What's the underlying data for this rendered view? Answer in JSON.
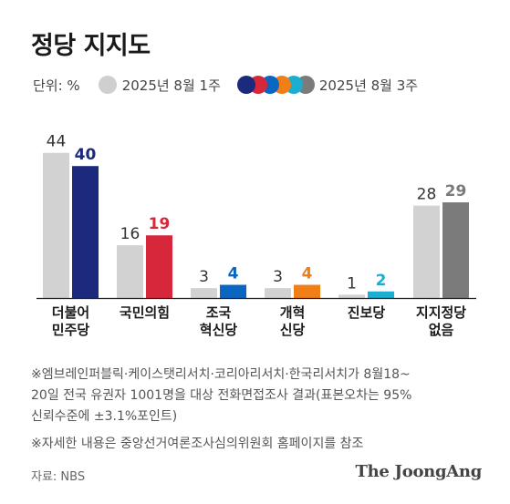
{
  "title": "정당 지지도",
  "legend": {
    "unit": "단위: %",
    "prev_label": "2025년 8월 1주",
    "curr_label": "2025년 8월 3주"
  },
  "chart_data": {
    "type": "bar",
    "categories": [
      "더불어\n민주당",
      "국민의힘",
      "조국\n혁신당",
      "개혁\n신당",
      "진보당",
      "지지정당\n없음"
    ],
    "series": [
      {
        "name": "2025년 8월 1주",
        "values": [
          44,
          16,
          3,
          3,
          1,
          28
        ],
        "color": "#d2d2d2"
      },
      {
        "name": "2025년 8월 3주",
        "values": [
          40,
          19,
          4,
          4,
          2,
          29
        ],
        "colors": [
          "#1b2a7c",
          "#d7283b",
          "#0b66c2",
          "#f07f17",
          "#1aaed1",
          "#7b7b7b"
        ]
      }
    ],
    "ylim": [
      0,
      47
    ]
  },
  "notes": [
    "※엠브레인퍼블릭·케이스탯리서치·코리아리서치·한국리서치가 8월18~\n20일 전국 유권자 1001명을 대상 전화면접조사 결과(표본오차는 95%\n신뢰수준에 ±3.1%포인트)",
    "※자세한 내용은 중앙선거여론조사심의위원회 홈페이지를 참조"
  ],
  "source": "자료: NBS",
  "brand": "The JoongAng"
}
